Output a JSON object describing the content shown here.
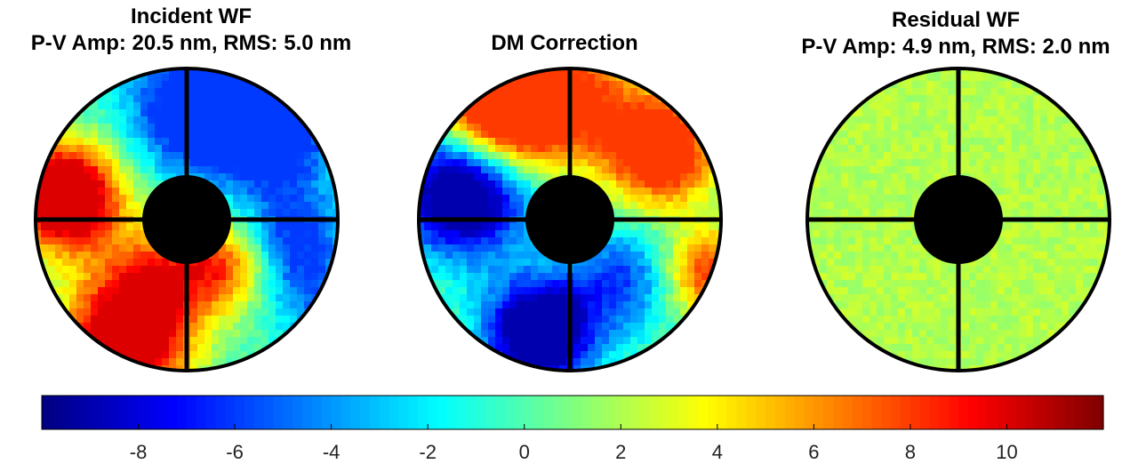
{
  "chart_data": [
    {
      "type": "heatmap",
      "name": "incident",
      "title_line1": "Incident WF",
      "title_line2": "P-V Amp: 20.5 nm, RMS: 5.0 nm",
      "metrics": {
        "pv_amp_nm": 20.5,
        "rms_nm": 5.0
      },
      "value_range": [
        -6,
        10
      ],
      "mask": "annular aperture with central obstruction and four spider vanes",
      "blobs": [
        {
          "u": -0.8,
          "v": -0.15,
          "s": 0.25,
          "a": 16
        },
        {
          "u": -0.4,
          "v": 0.8,
          "s": 0.3,
          "a": 14
        },
        {
          "u": 0.25,
          "v": 0.3,
          "s": 0.22,
          "a": 8
        },
        {
          "u": -0.2,
          "v": 0.35,
          "s": 0.25,
          "a": 6
        },
        {
          "u": 0.05,
          "v": -0.75,
          "s": 0.3,
          "a": -8
        },
        {
          "u": 0.55,
          "v": -0.6,
          "s": 0.3,
          "a": -8
        },
        {
          "u": 0.7,
          "v": 0.15,
          "s": 0.25,
          "a": -6
        },
        {
          "u": 0.85,
          "v": 0.55,
          "s": 0.2,
          "a": -3
        }
      ],
      "base": -0.5
    },
    {
      "type": "heatmap",
      "name": "dm-correction",
      "title_line1": "DM Correction",
      "value_range": [
        -9,
        8
      ],
      "mask": "annular aperture with central obstruction and four spider vanes",
      "blobs": [
        {
          "u": -0.7,
          "v": -0.2,
          "s": 0.3,
          "a": -14
        },
        {
          "u": -0.2,
          "v": 0.75,
          "s": 0.25,
          "a": -14
        },
        {
          "u": -0.45,
          "v": -0.75,
          "s": 0.3,
          "a": 16
        },
        {
          "u": 0.6,
          "v": -0.45,
          "s": 0.25,
          "a": 11
        },
        {
          "u": 0.35,
          "v": 0.4,
          "s": 0.25,
          "a": -6
        },
        {
          "u": 0.9,
          "v": 0.35,
          "s": 0.2,
          "a": 8
        },
        {
          "u": 0.1,
          "v": -0.8,
          "s": 0.3,
          "a": 6
        }
      ],
      "base": 0.3
    },
    {
      "type": "heatmap",
      "name": "residual",
      "title_line1": "Residual WF",
      "title_line2": "P-V Amp: 4.9 nm, RMS: 2.0 nm",
      "metrics": {
        "pv_amp_nm": 4.9,
        "rms_nm": 2.0
      },
      "value_range": [
        1,
        3
      ],
      "mask": "annular aperture with central obstruction and four spider vanes",
      "blobs": [],
      "base": 2.1
    }
  ],
  "colorbar": {
    "colormap": "jet",
    "range": [
      -10,
      12
    ],
    "ticks": [
      -8,
      -6,
      -4,
      -2,
      0,
      2,
      4,
      6,
      8,
      10
    ],
    "tick_labels": [
      "-8",
      "-6",
      "-4",
      "-2",
      "0",
      "2",
      "4",
      "6",
      "8",
      "10"
    ]
  }
}
